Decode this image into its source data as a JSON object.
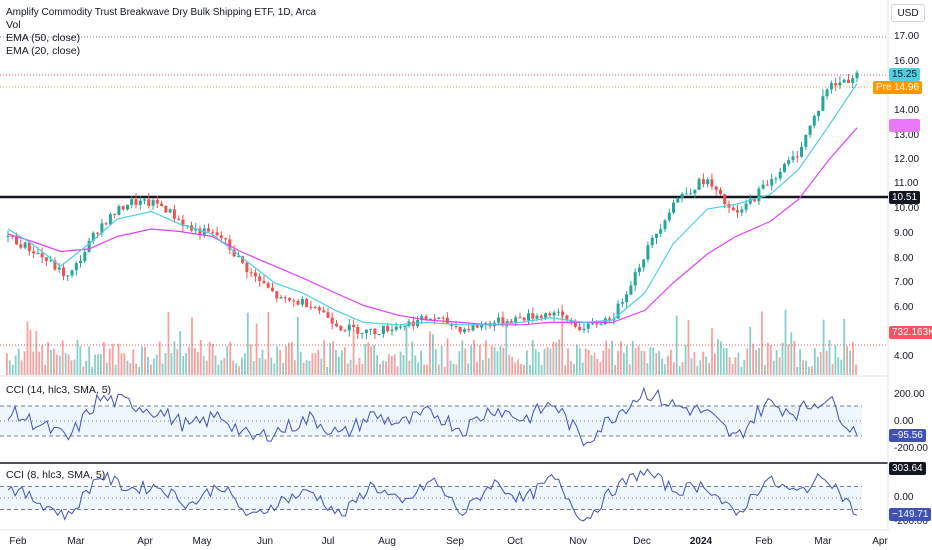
{
  "header": {
    "title": "Amplify Commodity Trust Breakwave Dry Bulk Shipping ETF, 1D, Arca",
    "vol_label": "Vol",
    "ema50_label": "EMA (50, close)",
    "ema20_label": "EMA (20, close)",
    "currency": "USD"
  },
  "price_axis": {
    "ticks": [
      "17.00",
      "16.00",
      "14.00",
      "13.00",
      "12.00",
      "11.00",
      "10.00",
      "9.00",
      "8.00",
      "7.00",
      "6.00",
      "5.00",
      "4.00"
    ],
    "last_price": "15.25",
    "pre_label": "Pre",
    "pre_price": "14.96",
    "ema50_value": "13.33",
    "level_line": "10.51",
    "volume_value": "732.163K"
  },
  "cci1": {
    "label": "CCI (14, hlc3, SMA, 5)",
    "ticks": [
      "200.00",
      "0.00",
      "-200.00"
    ],
    "value": "−95.56"
  },
  "cci2": {
    "label": "CCI (8, hlc3, SMA, 5)",
    "ticks": [
      "0.00",
      "-200.00"
    ],
    "top_value": "303.64",
    "value": "−149.71"
  },
  "time_axis": {
    "months": [
      "Feb",
      "Mar",
      "Apr",
      "May",
      "Jun",
      "Jul",
      "Aug",
      "Sep",
      "Oct",
      "Nov",
      "Dec",
      "2024",
      "Feb",
      "Mar",
      "Apr"
    ]
  },
  "chart_data": {
    "type": "line",
    "title": "Amplify Commodity Trust Breakwave Dry Bulk Shipping ETF, 1D, Arca",
    "xlabel": "",
    "ylabel": "",
    "ylim": [
      3.6,
      17.5
    ],
    "horizontal_levels": [
      10.51,
      17.0
    ],
    "x": [
      "2023-01-20",
      "2023-02-01",
      "2023-02-15",
      "2023-03-01",
      "2023-03-15",
      "2023-04-01",
      "2023-04-15",
      "2023-05-01",
      "2023-05-15",
      "2023-06-01",
      "2023-06-15",
      "2023-07-01",
      "2023-07-15",
      "2023-08-01",
      "2023-08-15",
      "2023-09-01",
      "2023-09-15",
      "2023-10-01",
      "2023-10-15",
      "2023-11-01",
      "2023-11-15",
      "2023-12-01",
      "2023-12-15",
      "2024-01-01",
      "2024-01-15",
      "2024-02-01",
      "2024-02-15",
      "2024-03-01",
      "2024-03-15"
    ],
    "series": [
      {
        "name": "",
        "values": [
          8.9,
          8.2,
          7.2,
          9.3,
          10.3,
          10.2,
          9.2,
          8.9,
          7.4,
          6.3,
          6.2,
          5.2,
          5.0,
          5.3,
          5.6,
          5.1,
          5.4,
          5.6,
          5.8,
          5.1,
          5.7,
          8.2,
          10.4,
          11.2,
          9.7,
          11.0,
          12.2,
          14.8,
          15.25
        ]
      },
      {
        "name": "EMA (20, close)",
        "values": [
          9.2,
          8.6,
          7.7,
          8.6,
          9.6,
          9.9,
          9.4,
          9.0,
          8.1,
          7.0,
          6.6,
          5.9,
          5.4,
          5.3,
          5.4,
          5.3,
          5.3,
          5.4,
          5.6,
          5.4,
          5.5,
          6.6,
          8.6,
          10.0,
          10.2,
          10.6,
          11.6,
          13.4,
          14.95
        ]
      },
      {
        "name": "EMA (50, close)",
        "values": [
          9.0,
          8.7,
          8.3,
          8.4,
          8.9,
          9.2,
          9.1,
          8.9,
          8.3,
          7.7,
          7.2,
          6.6,
          6.1,
          5.7,
          5.5,
          5.4,
          5.3,
          5.3,
          5.4,
          5.4,
          5.4,
          5.9,
          7.0,
          8.2,
          8.9,
          9.5,
          10.4,
          12.0,
          13.33
        ]
      }
    ],
    "cci_14": [
      60,
      -20,
      -120,
      150,
      120,
      60,
      -40,
      40,
      -120,
      -60,
      20,
      -100,
      40,
      -20,
      60,
      -60,
      90,
      10,
      120,
      -140,
      40,
      200,
      100,
      60,
      -120,
      120,
      60,
      160,
      -95.56
    ],
    "cci_8": [
      100,
      -30,
      -160,
      200,
      80,
      100,
      -60,
      120,
      -180,
      -20,
      60,
      -160,
      120,
      -60,
      160,
      -140,
      140,
      -20,
      180,
      -200,
      80,
      240,
      60,
      120,
      -160,
      160,
      40,
      200,
      -149.71
    ]
  }
}
